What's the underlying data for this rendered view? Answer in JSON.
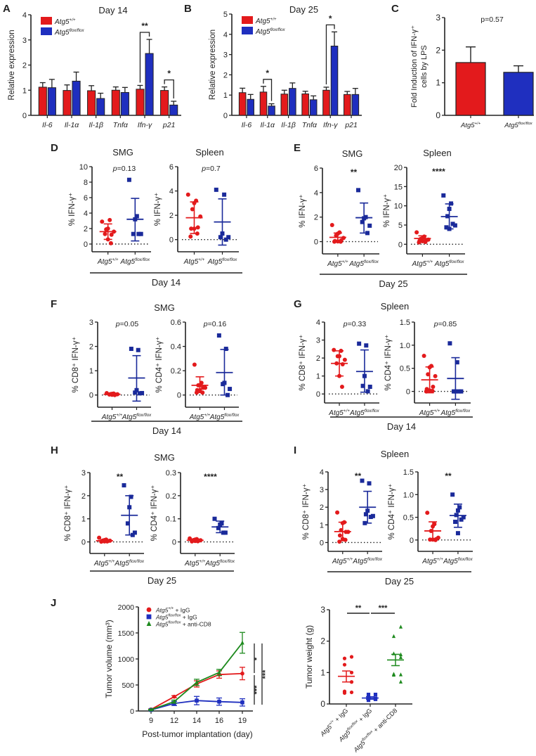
{
  "colors": {
    "wt": "#e31a1c",
    "ko": "#1f2fbf",
    "ko_dark": "#1a2a9a",
    "anti": "#1e8a1e",
    "axis": "#222222"
  },
  "legend": {
    "wt": "Atg5",
    "wt_sup": "+/+",
    "ko": "Atg5",
    "ko_sup": "flox/flox"
  },
  "groups": {
    "wt": "Atg5",
    "wt_sup": "+/+",
    "ko": "Atg5",
    "ko_sup": "flox/flox"
  },
  "chart_data": [
    {
      "id": "A",
      "panel_label": "A",
      "type": "bar",
      "title": "Day 14",
      "ylabel": "Relative expression",
      "ylim": [
        0,
        4
      ],
      "yticks": [
        0,
        1,
        2,
        3,
        4
      ],
      "categories": [
        "Il-6",
        "Il-1α",
        "Il-1β",
        "Tnfα",
        "Ifn-γ",
        "p21"
      ],
      "series": [
        {
          "name": "Atg5+/+",
          "values": [
            1.12,
            0.99,
            0.98,
            1.0,
            1.04,
            0.99
          ],
          "errors": [
            0.18,
            0.22,
            0.2,
            0.13,
            0.15,
            0.14
          ]
        },
        {
          "name": "Atg5flox/flox",
          "values": [
            1.1,
            1.36,
            0.67,
            0.91,
            2.46,
            0.41
          ],
          "errors": [
            0.33,
            0.36,
            0.21,
            0.2,
            0.56,
            0.15
          ]
        }
      ],
      "significance": [
        {
          "category": "Ifn-γ",
          "label": "**"
        },
        {
          "category": "p21",
          "label": "*"
        }
      ]
    },
    {
      "id": "B",
      "panel_label": "B",
      "type": "bar",
      "title": "Day 25",
      "ylabel": "Relative expression",
      "ylim": [
        0,
        5
      ],
      "yticks": [
        0,
        1,
        2,
        3,
        4,
        5
      ],
      "categories": [
        "Il-6",
        "Il-1α",
        "Il-1β",
        "Tnfα",
        "Ifn-γ",
        "p21"
      ],
      "series": [
        {
          "name": "Atg5+/+",
          "values": [
            1.12,
            1.15,
            1.05,
            1.06,
            1.24,
            1.03
          ],
          "errors": [
            0.22,
            0.28,
            0.19,
            0.13,
            0.15,
            0.15
          ]
        },
        {
          "name": "Atg5flox/flox",
          "values": [
            0.79,
            0.46,
            1.33,
            0.77,
            3.42,
            1.03
          ],
          "errors": [
            0.24,
            0.11,
            0.27,
            0.19,
            0.7,
            0.3
          ]
        }
      ],
      "significance": [
        {
          "category": "Il-1α",
          "label": "*"
        },
        {
          "category": "Ifn-γ",
          "label": "*"
        }
      ]
    },
    {
      "id": "C",
      "panel_label": "C",
      "type": "bar",
      "title": "",
      "annotation": "p=0.57",
      "ylabel_lines": [
        "Fold Induction of  IFN-γ⁺",
        "cells by LPS"
      ],
      "ylim": [
        0,
        3
      ],
      "yticks": [
        0,
        1,
        2,
        3
      ],
      "categories": [
        "Atg5+/+",
        "Atg5flox/flox"
      ],
      "values": [
        1.62,
        1.32
      ],
      "errors": [
        0.48,
        0.2
      ]
    },
    {
      "id": "D1",
      "panel_label": "D",
      "type": "scatter",
      "title": "SMG",
      "annotation": "p=0.13",
      "ylabel": "% IFN-γ⁺",
      "ylim": [
        -1,
        10
      ],
      "yticks": [
        0,
        2,
        4,
        6,
        8,
        10
      ],
      "groups": [
        {
          "name": "Atg5+/+",
          "points": [
            2.9,
            3.1,
            2.0,
            1.9,
            1.6,
            1.2,
            1.3,
            0.6,
            0.1
          ],
          "mean": 1.6,
          "err_low": 0.6,
          "err_high": 2.6
        },
        {
          "name": "Atg5flox/flox",
          "points": [
            8.3,
            3.6,
            3.2,
            1.3,
            1.3,
            1.3
          ],
          "mean": 3.2,
          "err_low": 0.4,
          "err_high": 5.9
        }
      ]
    },
    {
      "id": "D2",
      "panel_label": "",
      "type": "scatter",
      "title": "Spleen",
      "annotation": "p=0.7",
      "ylabel": "% IFN-γ⁺",
      "ylim": [
        -1,
        6
      ],
      "yticks": [
        0,
        2,
        4,
        6
      ],
      "groups": [
        {
          "name": "Atg5+/+",
          "points": [
            3.7,
            3.2,
            3.0,
            2.5,
            1.9,
            1.0,
            0.9,
            0.9,
            0.5,
            0.25
          ],
          "mean": 1.8,
          "err_low": 0.5,
          "err_high": 3.1
        },
        {
          "name": "Atg5flox/flox",
          "points": [
            4.1,
            3.7,
            0.5,
            0.2,
            0.2,
            0.0
          ],
          "mean": 1.45,
          "err_low": -0.45,
          "err_high": 3.35
        }
      ]
    },
    {
      "id": "E1",
      "panel_label": "E",
      "type": "scatter",
      "title": "SMG",
      "annotation": "**",
      "ylabel": "% IFN-γ⁺",
      "ylim": [
        -1,
        6
      ],
      "yticks": [
        0,
        2,
        4,
        6
      ],
      "groups": [
        {
          "name": "Atg5+/+",
          "points": [
            1.35,
            0.75,
            0.65,
            0.5,
            0.3,
            0.1,
            0.05,
            0.02,
            0.0,
            0.0
          ],
          "mean": 0.35,
          "err_low": 0.0,
          "err_high": 0.7
        },
        {
          "name": "Atg5flox/flox",
          "points": [
            4.2,
            2.0,
            1.9,
            1.6,
            1.3,
            0.7
          ],
          "mean": 1.95,
          "err_low": 0.7,
          "err_high": 3.15
        }
      ]
    },
    {
      "id": "E2",
      "panel_label": "",
      "type": "scatter",
      "title": "Spleen",
      "annotation": "****",
      "ylabel": "% IFN-γ⁺",
      "ylim": [
        -2.5,
        20
      ],
      "yticks": [
        0,
        5,
        10,
        15,
        20
      ],
      "groups": [
        {
          "name": "Atg5+/+",
          "points": [
            3.1,
            2.0,
            1.6,
            1.4,
            1.2,
            1.0,
            0.9,
            0.8,
            0.6,
            0.5
          ],
          "mean": 1.5,
          "err_low": 0.8,
          "err_high": 2.2
        },
        {
          "name": "Atg5flox/flox",
          "points": [
            12.7,
            10.6,
            9.2,
            7.3,
            4.9,
            5.3,
            4.4,
            4.0
          ],
          "mean": 7.2,
          "err_low": 4.0,
          "err_high": 10.5
        }
      ]
    },
    {
      "id": "F1",
      "panel_label": "F",
      "type": "scatter",
      "title": "",
      "annotation": "p=0.05",
      "ylabel": "% CD8⁺ IFN-γ⁺",
      "ylim": [
        -0.5,
        3
      ],
      "yticks": [
        0,
        1,
        2,
        3
      ],
      "groups": [
        {
          "name": "Atg5+/+",
          "points": [
            0.08,
            0.06,
            0.05,
            0.04,
            0.03,
            0.02,
            0.02,
            0.01,
            0.0
          ],
          "mean": 0.03,
          "err_low": 0.01,
          "err_high": 0.05
        },
        {
          "name": "Atg5flox/flox",
          "points": [
            1.9,
            1.85,
            0.2,
            0.1,
            0.08,
            0.07
          ],
          "mean": 0.7,
          "err_low": -0.25,
          "err_high": 1.62
        }
      ]
    },
    {
      "id": "F2",
      "panel_label": "",
      "type": "scatter",
      "title": "",
      "annotation": "p=0.16",
      "ylabel": "% CD4⁺ IFN-γ⁺",
      "ylim": [
        -0.1,
        0.6
      ],
      "yticks": [
        0,
        0.2,
        0.4,
        0.6
      ],
      "groups": [
        {
          "name": "Atg5+/+",
          "points": [
            0.25,
            0.1,
            0.08,
            0.08,
            0.06,
            0.06,
            0.04,
            0.04,
            0.02,
            0.02
          ],
          "mean": 0.08,
          "err_low": 0.02,
          "err_high": 0.15
        },
        {
          "name": "Atg5flox/flox",
          "points": [
            0.49,
            0.38,
            0.1,
            0.09,
            0.05,
            0.0
          ],
          "mean": 0.185,
          "err_low": 0.0,
          "err_high": 0.375
        }
      ]
    },
    {
      "id": "G1",
      "panel_label": "G",
      "type": "scatter",
      "title": "",
      "annotation": "p=0.33",
      "ylabel": "% CD8⁺ IFN-γ⁺",
      "ylim": [
        -0.5,
        4
      ],
      "yticks": [
        0,
        1,
        2,
        3,
        4
      ],
      "groups": [
        {
          "name": "Atg5+/+",
          "points": [
            2.45,
            2.4,
            2.1,
            2.1,
            1.9,
            1.65,
            1.7,
            1.0,
            0.4
          ],
          "mean": 1.7,
          "err_low": 1.0,
          "err_high": 2.4
        },
        {
          "name": "Atg5flox/flox",
          "points": [
            2.8,
            2.7,
            1.0,
            0.45,
            0.4,
            0.15
          ],
          "mean": 1.25,
          "err_low": 0.1,
          "err_high": 2.45
        }
      ]
    },
    {
      "id": "G2",
      "panel_label": "",
      "type": "scatter",
      "title": "",
      "annotation": "p=0.85",
      "ylabel": "% CD4⁺ IFN-γ⁺",
      "ylim": [
        -0.25,
        1.5
      ],
      "yticks": [
        0,
        0.5,
        1.0,
        1.5
      ],
      "ytick_labels": [
        "0",
        "0.5",
        "1.0",
        "1.5"
      ],
      "groups": [
        {
          "name": "Atg5+/+",
          "points": [
            0.77,
            0.55,
            0.52,
            0.37,
            0.33,
            0.1,
            0.05,
            0.02,
            0.01,
            0.0
          ],
          "mean": 0.25,
          "err_low": -0.03,
          "err_high": 0.53
        },
        {
          "name": "Atg5flox/flox",
          "points": [
            1.04,
            0.63,
            0.0,
            0.0,
            0.0,
            0.0
          ],
          "mean": 0.28,
          "err_low": -0.17,
          "err_high": 0.73
        }
      ]
    },
    {
      "id": "H1",
      "panel_label": "H",
      "type": "scatter",
      "title": "",
      "annotation": "**",
      "ylabel": "% CD8⁺ IFN-γ⁺",
      "ylim": [
        -0.5,
        3
      ],
      "yticks": [
        0,
        1,
        2,
        3
      ],
      "groups": [
        {
          "name": "Atg5+/+",
          "points": [
            0.18,
            0.1,
            0.08,
            0.06,
            0.05,
            0.04,
            0.03,
            0.02,
            0.02,
            0.01
          ],
          "mean": 0.05,
          "err_low": 0.01,
          "err_high": 0.1
        },
        {
          "name": "Atg5flox/flox",
          "points": [
            2.45,
            1.95,
            1.5,
            0.8,
            0.4,
            0.3
          ],
          "mean": 1.15,
          "err_low": 0.3,
          "err_high": 2.0
        }
      ]
    },
    {
      "id": "H2",
      "panel_label": "",
      "type": "scatter",
      "title": "",
      "annotation": "****",
      "ylabel": "% CD4⁺ IFN-γ⁺",
      "ylim": [
        -0.05,
        0.3
      ],
      "yticks": [
        0,
        0.1,
        0.2,
        0.3
      ],
      "groups": [
        {
          "name": "Atg5+/+",
          "points": [
            0.015,
            0.012,
            0.01,
            0.008,
            0.007,
            0.006,
            0.005,
            0.004,
            0.003,
            0.002
          ],
          "mean": 0.007,
          "err_low": 0.003,
          "err_high": 0.012
        },
        {
          "name": "Atg5flox/flox",
          "points": [
            0.1,
            0.08,
            0.075,
            0.06,
            0.04,
            0.04
          ],
          "mean": 0.065,
          "err_low": 0.04,
          "err_high": 0.09
        }
      ]
    },
    {
      "id": "I1",
      "panel_label": "I",
      "type": "scatter",
      "title": "",
      "annotation": "**",
      "ylabel": "% CD8⁺ IFN-γ⁺",
      "ylim": [
        -0.5,
        4
      ],
      "yticks": [
        0,
        1,
        2,
        3,
        4
      ],
      "groups": [
        {
          "name": "Atg5+/+",
          "points": [
            1.7,
            1.15,
            1.1,
            0.7,
            0.6,
            0.6,
            0.4,
            0.2,
            0.15,
            0.05
          ],
          "mean": 0.62,
          "err_low": 0.1,
          "err_high": 1.15
        },
        {
          "name": "Atg5flox/flox",
          "points": [
            3.5,
            3.35,
            1.8,
            1.6,
            1.5,
            1.45,
            1.1
          ],
          "mean": 2.0,
          "err_low": 1.1,
          "err_high": 2.9
        }
      ]
    },
    {
      "id": "I2",
      "panel_label": "",
      "type": "scatter",
      "title": "",
      "annotation": "**",
      "ylabel": "% CD4⁺ IFN-γ⁺",
      "ylim": [
        -0.25,
        1.5
      ],
      "yticks": [
        0,
        0.5,
        1.0,
        1.5
      ],
      "ytick_labels": [
        "0",
        "0.5",
        "1.0",
        "1.5"
      ],
      "groups": [
        {
          "name": "Atg5+/+",
          "points": [
            0.6,
            0.35,
            0.3,
            0.2,
            0.05,
            0.02,
            0.01,
            0.01,
            0.0
          ],
          "mean": 0.2,
          "err_low": 0.0,
          "err_high": 0.4
        },
        {
          "name": "Atg5flox/flox",
          "points": [
            1.0,
            0.72,
            0.65,
            0.55,
            0.5,
            0.45,
            0.4,
            0.15
          ],
          "mean": 0.54,
          "err_low": 0.28,
          "err_high": 0.79
        }
      ]
    },
    {
      "id": "J1",
      "panel_label": "J",
      "type": "line",
      "title": "",
      "xlabel": "Post-tumor implantation (day)",
      "ylabel": "Tumor volume (mm³)",
      "ylim": [
        0,
        2000
      ],
      "yticks": [
        0,
        500,
        1000,
        1500,
        2000
      ],
      "x": [
        9,
        12,
        14,
        16,
        19
      ],
      "series": [
        {
          "name": "Atg5+/+ + IgG",
          "sup": "+/+",
          "suffix": " + IgG",
          "color_key": "wt",
          "marker": "circle",
          "values": [
            30,
            275,
            520,
            700,
            720
          ],
          "errors": [
            10,
            20,
            60,
            70,
            120
          ]
        },
        {
          "name": "Atg5flox/flox + IgG",
          "sup": "flox/flox",
          "suffix": " + IgG",
          "color_key": "ko",
          "marker": "square",
          "values": [
            20,
            145,
            200,
            180,
            165
          ],
          "errors": [
            8,
            40,
            80,
            70,
            70
          ]
        },
        {
          "name": "Atg5flox/flox + anti-CD8",
          "sup": "flox/flox",
          "suffix": " + anti-CD8",
          "color_key": "anti",
          "marker": "triangle",
          "values": [
            25,
            180,
            550,
            740,
            1310
          ],
          "errors": [
            8,
            30,
            60,
            60,
            200
          ]
        }
      ],
      "significance": [
        "*",
        "***",
        "***"
      ]
    },
    {
      "id": "J2",
      "panel_label": "",
      "type": "scatter",
      "title": "",
      "ylabel": "Tumor weight (g)",
      "ylim": [
        0,
        3
      ],
      "yticks": [
        0,
        1,
        2,
        3
      ],
      "categories": [
        "Atg5+/+ + IgG",
        "Atg5flox/flox + IgG",
        "Atg5flox/flox + anti-CD8"
      ],
      "groups": [
        {
          "name": "Atg5+/+ + IgG",
          "sup": "+/+",
          "suffix": " + IgG",
          "color_key": "wt",
          "marker": "circle",
          "points": [
            1.5,
            1.45,
            1.25,
            1.0,
            0.7,
            0.4,
            0.35,
            0.37
          ],
          "mean": 0.88,
          "err_low": 0.7,
          "err_high": 1.05
        },
        {
          "name": "Atg5flox/flox + IgG",
          "sup": "flox/flox",
          "suffix": " + IgG",
          "color_key": "ko",
          "marker": "square",
          "points": [
            0.3,
            0.3,
            0.2,
            0.18,
            0.15,
            0.12,
            0.17,
            0.16
          ],
          "mean": 0.19,
          "err_low": 0.15,
          "err_high": 0.23
        },
        {
          "name": "Atg5flox/flox + anti-CD8",
          "sup": "flox/flox",
          "suffix": " + anti-CD8",
          "color_key": "anti",
          "marker": "triangle",
          "points": [
            2.45,
            2.15,
            1.6,
            1.57,
            1.48,
            0.95,
            0.92,
            0.93,
            0.7
          ],
          "mean": 1.4,
          "err_low": 1.22,
          "err_high": 1.58
        }
      ],
      "significance": [
        {
          "between": [
            0,
            1
          ],
          "label": "**"
        },
        {
          "between": [
            1,
            2
          ],
          "label": "***"
        }
      ]
    }
  ],
  "group_labels": [
    {
      "id": "D",
      "label": "Day 14"
    },
    {
      "id": "E",
      "label": "Day 25"
    },
    {
      "id": "F",
      "label": "Day 14",
      "title": "SMG"
    },
    {
      "id": "G",
      "label": "Day 14",
      "title": "Spleen"
    },
    {
      "id": "H",
      "label": "Day 25",
      "title": "SMG"
    },
    {
      "id": "I",
      "label": "Day 25",
      "title": "Spleen"
    }
  ]
}
